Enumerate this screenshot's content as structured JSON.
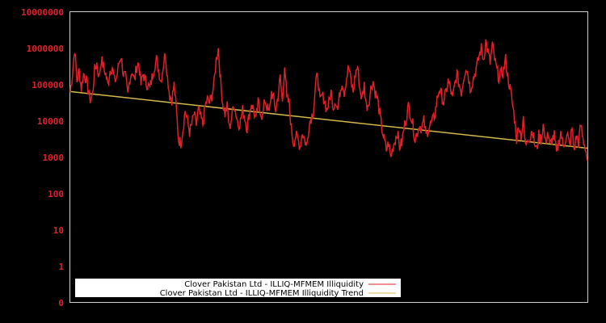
{
  "chart_data": {
    "type": "line",
    "title": "",
    "xlabel": "",
    "ylabel": "",
    "yscale": "log",
    "ylim": [
      0,
      10000000
    ],
    "y_ticks": [
      "10000000",
      "1000000",
      "100000",
      "10000",
      "1000",
      "100",
      "10",
      "1",
      "0"
    ],
    "grid": false,
    "legend_position": "lower-left",
    "background": "#000000",
    "frame_color": "#cccccc",
    "tick_color": "#e0202a",
    "series": [
      {
        "name": "Clover Pakistan Ltd - ILLIQ-MFMEM Illiquidity",
        "color": "#e0202a",
        "log10_values": [
          4.8,
          5.3,
          6.0,
          5.1,
          5.4,
          4.9,
          5.3,
          5.2,
          4.9,
          4.6,
          4.7,
          5.4,
          5.6,
          5.2,
          5.7,
          5.5,
          5.3,
          5.0,
          5.4,
          5.5,
          5.1,
          5.2,
          5.6,
          5.8,
          5.3,
          5.2,
          4.7,
          5.2,
          5.4,
          5.1,
          5.5,
          5.6,
          5.0,
          5.3,
          5.1,
          5.0,
          4.9,
          5.2,
          5.5,
          5.7,
          5.4,
          5.1,
          5.5,
          5.9,
          5.2,
          4.7,
          4.6,
          5.0,
          4.3,
          3.5,
          3.4,
          3.8,
          4.3,
          4.0,
          3.7,
          3.9,
          4.2,
          3.9,
          4.3,
          4.1,
          3.9,
          4.4,
          4.6,
          4.5,
          4.7,
          5.0,
          5.7,
          6.0,
          5.1,
          4.5,
          4.2,
          4.4,
          3.8,
          4.1,
          4.5,
          4.2,
          3.9,
          4.0,
          4.3,
          4.1,
          3.8,
          4.2,
          4.5,
          4.3,
          4.0,
          4.5,
          4.3,
          4.1,
          4.6,
          4.4,
          4.2,
          4.8,
          4.6,
          4.3,
          4.7,
          5.2,
          4.5,
          5.6,
          4.6,
          4.5,
          3.8,
          3.4,
          3.6,
          3.5,
          3.3,
          3.7,
          3.5,
          3.3,
          3.9,
          4.1,
          4.3,
          5.0,
          5.3,
          4.5,
          4.7,
          4.6,
          4.3,
          4.5,
          4.8,
          4.4,
          4.6,
          4.3,
          4.8,
          5.1,
          4.8,
          5.2,
          5.5,
          5.1,
          4.8,
          5.3,
          5.5,
          4.9,
          4.6,
          5.0,
          4.4,
          4.5,
          4.9,
          5.1,
          4.8,
          4.6,
          4.2,
          3.8,
          3.5,
          3.2,
          3.4,
          3.0,
          3.3,
          3.5,
          3.7,
          3.3,
          3.4,
          3.8,
          4.1,
          4.4,
          4.2,
          3.9,
          3.5,
          3.7,
          3.9,
          3.8,
          4.0,
          3.6,
          3.8,
          3.9,
          4.0,
          4.2,
          4.6,
          4.9,
          4.7,
          4.5,
          4.8,
          5.1,
          4.9,
          4.6,
          5.0,
          5.3,
          5.0,
          4.8,
          5.2,
          5.5,
          5.3,
          4.9,
          5.1,
          5.3,
          5.5,
          5.8,
          6.0,
          5.7,
          6.2,
          5.9,
          5.6,
          6.1,
          5.7,
          5.4,
          5.2,
          5.3,
          5.4,
          5.7,
          5.2,
          4.9,
          4.5,
          4.1,
          3.5,
          3.9,
          3.6,
          4.0,
          3.3,
          3.6,
          3.5,
          3.8,
          3.4,
          3.2,
          3.6,
          3.5,
          3.9,
          3.4,
          3.7,
          3.3,
          3.5,
          3.6,
          3.1,
          3.4,
          3.7,
          3.3,
          3.5,
          3.6,
          3.3,
          3.8,
          3.2,
          3.6,
          3.4,
          3.9,
          3.5,
          3.3,
          2.9
        ]
      },
      {
        "name": "Clover Pakistan Ltd - ILLIQ-MFMEM Illiquidity Trend",
        "color": "#d4b84a",
        "start": 65000,
        "end": 1800
      }
    ]
  },
  "legend": {
    "items": [
      {
        "label": "Clover Pakistan Ltd - ILLIQ-MFMEM Illiquidity",
        "color": "#e0202a"
      },
      {
        "label": "Clover Pakistan Ltd - ILLIQ-MFMEM Illiquidity Trend",
        "color": "#d4b84a"
      }
    ]
  }
}
